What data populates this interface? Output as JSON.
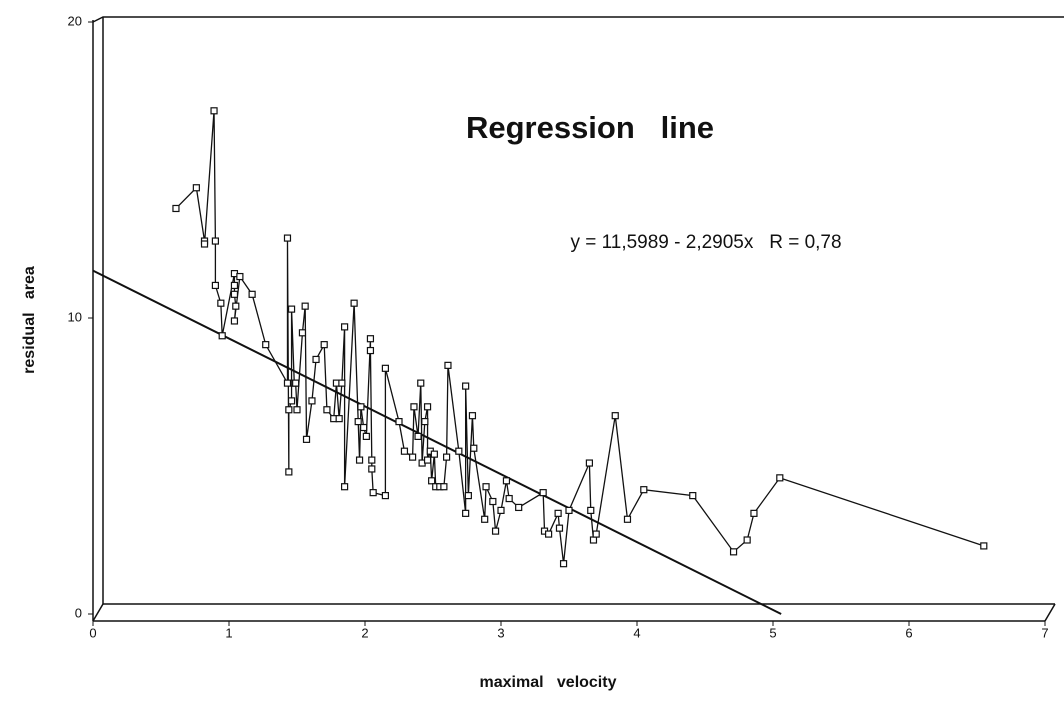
{
  "chart_data": {
    "type": "line",
    "title": "Regression   line",
    "annotation": "y = 11,5989 - 2,2905x   R = 0,78",
    "x_label": "maximal   velocity",
    "y_label": "residual   area",
    "x": [
      0.61,
      0.76,
      0.82,
      0.82,
      0.89,
      0.9,
      0.9,
      0.94,
      0.95,
      1.04,
      1.04,
      1.04,
      1.05,
      1.04,
      1.08,
      1.17,
      1.27,
      1.43,
      1.43,
      1.44,
      1.44,
      1.46,
      1.46,
      1.48,
      1.49,
      1.5,
      1.54,
      1.56,
      1.57,
      1.61,
      1.64,
      1.7,
      1.72,
      1.77,
      1.79,
      1.81,
      1.83,
      1.85,
      1.85,
      1.92,
      1.95,
      1.96,
      1.97,
      1.99,
      2.01,
      2.04,
      2.04,
      2.05,
      2.05,
      2.06,
      2.15,
      2.15,
      2.25,
      2.29,
      2.35,
      2.36,
      2.39,
      2.41,
      2.42,
      2.44,
      2.46,
      2.46,
      2.48,
      2.49,
      2.51,
      2.52,
      2.55,
      2.58,
      2.6,
      2.61,
      2.69,
      2.74,
      2.74,
      2.76,
      2.79,
      2.8,
      2.88,
      2.89,
      2.94,
      2.96,
      3.0,
      3.04,
      3.06,
      3.13,
      3.31,
      3.32,
      3.35,
      3.42,
      3.43,
      3.46,
      3.5,
      3.65,
      3.66,
      3.68,
      3.7,
      3.84,
      3.93,
      4.05,
      4.41,
      4.71,
      4.81,
      4.86,
      5.05,
      6.55
    ],
    "values": [
      13.7,
      14.4,
      12.6,
      12.5,
      17.0,
      12.6,
      11.1,
      10.5,
      9.4,
      11.5,
      11.1,
      10.8,
      10.4,
      9.9,
      11.4,
      10.8,
      9.1,
      7.8,
      12.7,
      4.8,
      6.9,
      7.2,
      10.3,
      7.8,
      7.8,
      6.9,
      9.5,
      10.4,
      5.9,
      7.2,
      8.6,
      9.1,
      6.9,
      6.6,
      7.8,
      6.6,
      7.8,
      9.7,
      4.3,
      10.5,
      6.5,
      5.2,
      7.0,
      6.3,
      6.0,
      9.3,
      8.9,
      5.2,
      4.9,
      4.1,
      4.0,
      8.3,
      6.5,
      5.5,
      5.3,
      7.0,
      6.0,
      7.8,
      5.1,
      6.5,
      7.0,
      5.2,
      5.5,
      4.5,
      5.4,
      4.3,
      4.3,
      4.3,
      5.3,
      8.4,
      5.5,
      3.4,
      7.7,
      4.0,
      6.7,
      5.6,
      3.2,
      4.3,
      3.8,
      2.8,
      3.5,
      4.5,
      3.9,
      3.6,
      4.1,
      2.8,
      2.7,
      3.4,
      2.9,
      1.7,
      3.5,
      5.1,
      3.5,
      2.5,
      2.7,
      6.7,
      3.2,
      4.2,
      4.0,
      2.1,
      2.5,
      3.4,
      4.6,
      2.3
    ],
    "regression_line": {
      "x": [
        0,
        5.06
      ],
      "values": [
        11.6,
        0
      ]
    },
    "color": "#111111",
    "xlim": [
      0,
      7
    ],
    "xticks": [
      0,
      1,
      2,
      3,
      4,
      5,
      6,
      7
    ],
    "ylim": [
      0,
      20
    ],
    "yticks": [
      0,
      10,
      20
    ],
    "grid": false
  }
}
